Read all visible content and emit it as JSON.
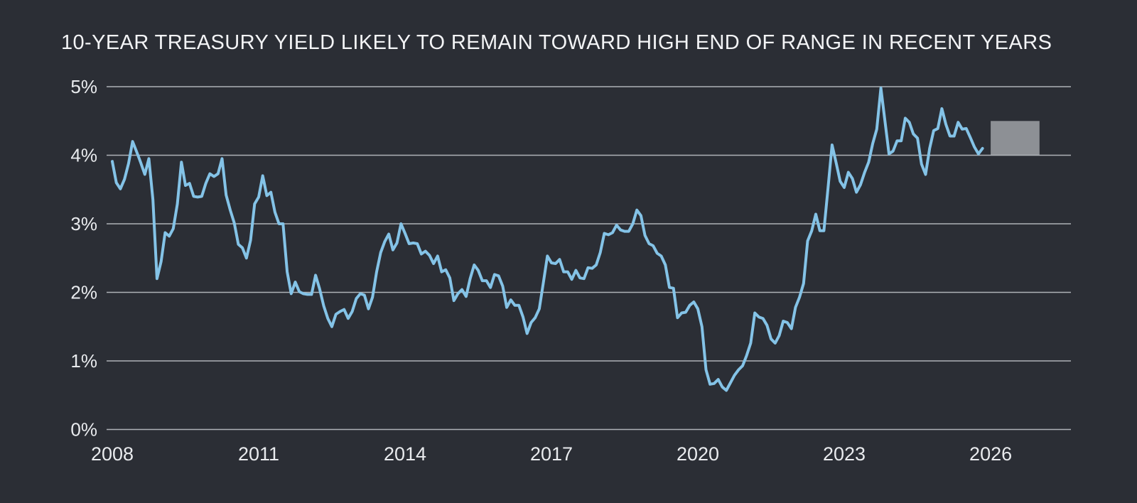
{
  "colors": {
    "background": "#2b2e35",
    "line": "#84c3e7",
    "grid": "#aeb2b7",
    "tick_text": "#e9ebee",
    "title_text": "#f3f4f6",
    "forecast_box": "#8d9095"
  },
  "chart_data": {
    "type": "line",
    "title": "10-YEAR TREASURY YIELD LIKELY TO REMAIN TOWARD HIGH END OF RANGE IN RECENT YEARS",
    "series_name": "10-year U.S. Treasury yield (%)",
    "grid": true,
    "legend": "none",
    "xlim": [
      2008,
      2027.65
    ],
    "ylim": [
      0,
      5
    ],
    "y_tick_values": [
      0,
      1,
      2,
      3,
      4,
      5
    ],
    "y_tick_labels": [
      "0%",
      "1%",
      "2%",
      "3%",
      "4%",
      "5%"
    ],
    "x_tick_values": [
      2008,
      2011,
      2014,
      2017,
      2020,
      2023,
      2026
    ],
    "x_tick_labels": [
      "2008",
      "2011",
      "2014",
      "2017",
      "2020",
      "2023",
      "2026"
    ],
    "x_start_year": 2008,
    "x_step_months": 1,
    "values": [
      3.91,
      3.6,
      3.51,
      3.65,
      3.88,
      4.2,
      4.05,
      3.89,
      3.72,
      3.95,
      3.35,
      2.2,
      2.45,
      2.87,
      2.82,
      2.93,
      3.29,
      3.9,
      3.56,
      3.59,
      3.4,
      3.39,
      3.4,
      3.59,
      3.73,
      3.69,
      3.73,
      3.95,
      3.42,
      3.2,
      3.01,
      2.7,
      2.65,
      2.5,
      2.76,
      3.29,
      3.39,
      3.7,
      3.41,
      3.46,
      3.17,
      3.0,
      3.0,
      2.3,
      1.98,
      2.15,
      2.01,
      1.98,
      1.97,
      1.97,
      2.25,
      2.05,
      1.8,
      1.62,
      1.5,
      1.68,
      1.72,
      1.75,
      1.62,
      1.72,
      1.91,
      1.98,
      1.96,
      1.76,
      1.93,
      2.3,
      2.58,
      2.74,
      2.85,
      2.62,
      2.72,
      3.0,
      2.86,
      2.71,
      2.72,
      2.71,
      2.56,
      2.6,
      2.54,
      2.42,
      2.53,
      2.3,
      2.33,
      2.21,
      1.88,
      1.98,
      2.04,
      1.94,
      2.2,
      2.4,
      2.32,
      2.17,
      2.17,
      2.07,
      2.26,
      2.24,
      2.09,
      1.78,
      1.89,
      1.81,
      1.81,
      1.64,
      1.4,
      1.56,
      1.63,
      1.76,
      2.14,
      2.53,
      2.43,
      2.42,
      2.48,
      2.3,
      2.3,
      2.19,
      2.32,
      2.21,
      2.2,
      2.36,
      2.35,
      2.4,
      2.58,
      2.86,
      2.84,
      2.87,
      2.98,
      2.91,
      2.89,
      2.89,
      3.0,
      3.2,
      3.12,
      2.83,
      2.71,
      2.68,
      2.57,
      2.53,
      2.4,
      2.07,
      2.06,
      1.63,
      1.7,
      1.71,
      1.81,
      1.86,
      1.76,
      1.5,
      0.87,
      0.66,
      0.67,
      0.73,
      0.62,
      0.57,
      0.68,
      0.79,
      0.87,
      0.93,
      1.08,
      1.26,
      1.7,
      1.64,
      1.62,
      1.52,
      1.32,
      1.26,
      1.37,
      1.58,
      1.56,
      1.47,
      1.78,
      1.93,
      2.13,
      2.75,
      2.9,
      3.14,
      2.9,
      2.9,
      3.52,
      4.15,
      3.89,
      3.62,
      3.53,
      3.75,
      3.66,
      3.46,
      3.57,
      3.75,
      3.9,
      4.17,
      4.38,
      4.98,
      4.5,
      4.02,
      4.06,
      4.21,
      4.21,
      4.54,
      4.48,
      4.31,
      4.25,
      3.87,
      3.72,
      4.1,
      4.36,
      4.39,
      4.68,
      4.45,
      4.28,
      4.28,
      4.48,
      4.38,
      4.39,
      4.26,
      4.12,
      4.02,
      4.1
    ],
    "forecast_box": {
      "x_from": 2026,
      "x_to": 2027,
      "y_from": 4.0,
      "y_to": 4.5
    }
  }
}
